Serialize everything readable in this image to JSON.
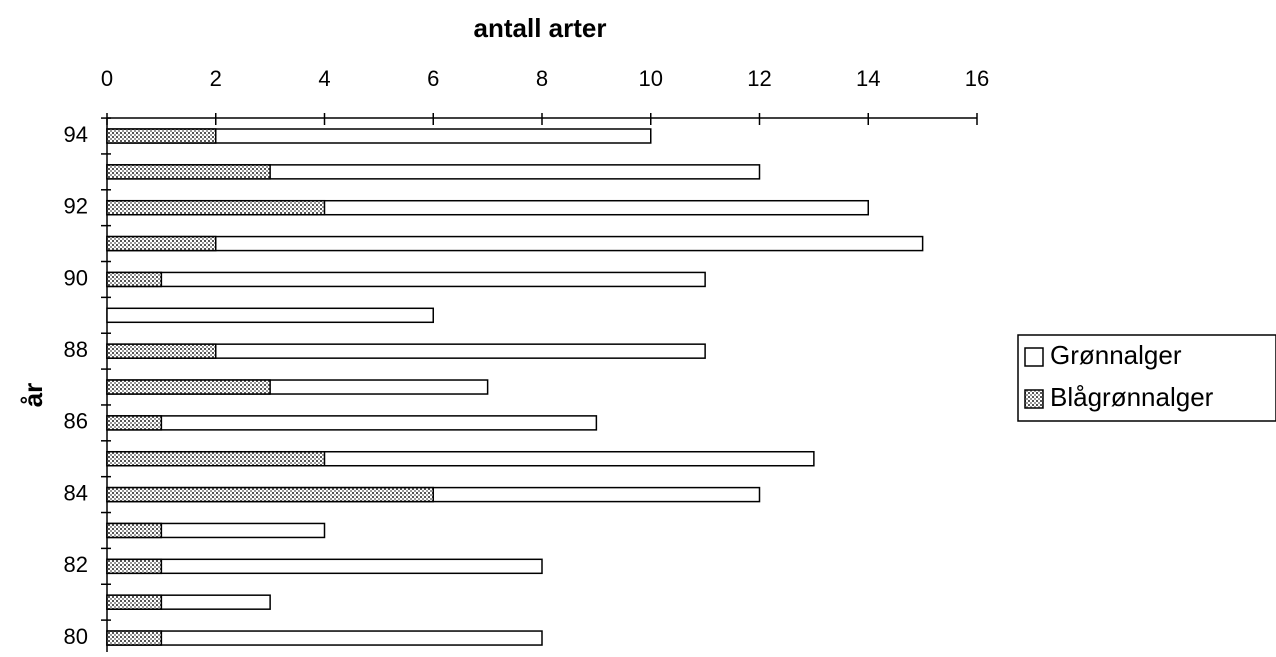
{
  "chart_data": {
    "type": "bar",
    "orientation": "horizontal",
    "barmode": "overlay",
    "title": "antall arter",
    "y_label": "år",
    "categories": [
      "94",
      null,
      "92",
      null,
      "90",
      null,
      "88",
      null,
      "86",
      null,
      "84",
      null,
      "82",
      null,
      "80"
    ],
    "series": [
      {
        "name": "Grønnalger",
        "color": "#ffffff",
        "values": [
          10,
          12,
          14,
          15,
          11,
          6,
          11,
          7,
          9,
          13,
          12,
          4,
          8,
          3,
          8
        ]
      },
      {
        "name": "Blågrønnalger",
        "color": "#555555",
        "values": [
          2,
          3,
          4,
          2,
          1,
          0,
          2,
          3,
          1,
          4,
          6,
          1,
          1,
          1,
          1
        ]
      }
    ],
    "xlim": [
      0,
      16
    ],
    "xticks": [
      0,
      2,
      4,
      6,
      8,
      10,
      12,
      14,
      16
    ],
    "grid": false,
    "legend": "right"
  }
}
